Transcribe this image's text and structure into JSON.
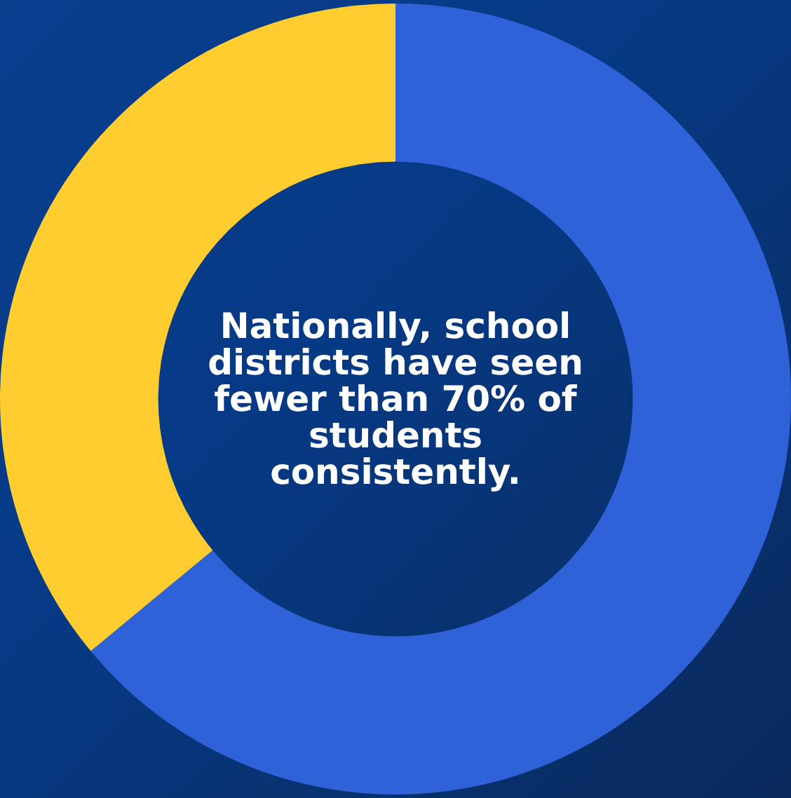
{
  "chart_data": {
    "type": "donut",
    "categories": [
      null,
      null
    ],
    "values": [
      64,
      36
    ],
    "colors": [
      "#2f62d8",
      "#ffcd30"
    ],
    "annotations": [
      "Nationally, school districts have seen fewer than 70% of students consistently."
    ],
    "legend": false
  }
}
